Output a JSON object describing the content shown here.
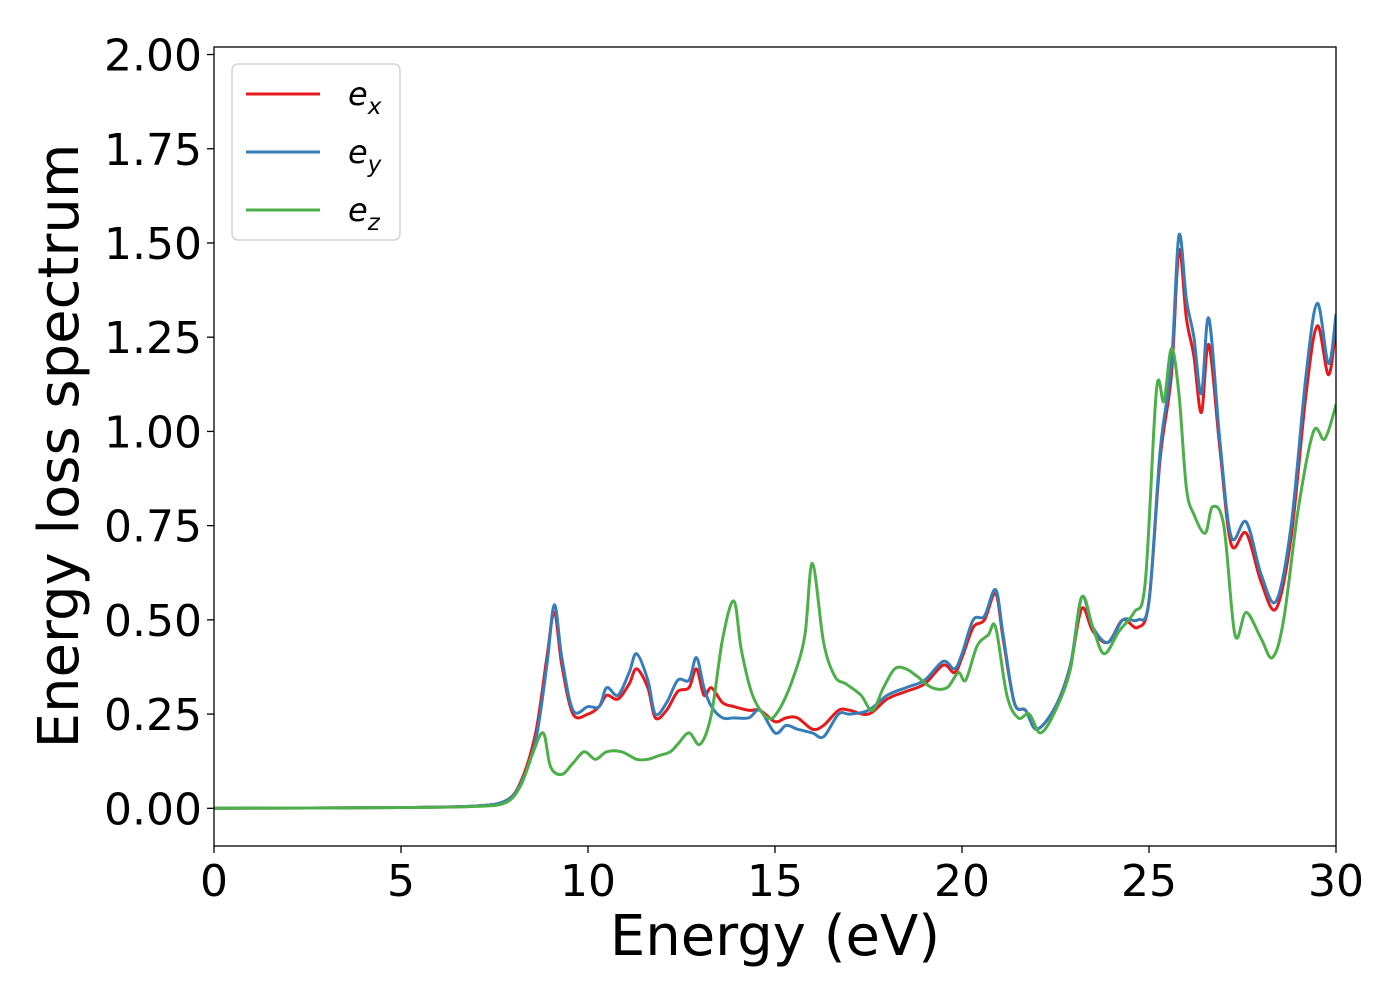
{
  "chart_data": {
    "type": "line",
    "title": "",
    "xlabel": "Energy (eV)",
    "ylabel": "Energy loss spectrum",
    "xlim": [
      0,
      30
    ],
    "ylim": [
      -0.1,
      2.02
    ],
    "xticks": [
      0,
      5,
      10,
      15,
      20,
      25,
      30
    ],
    "xtick_labels": [
      "0",
      "5",
      "10",
      "15",
      "20",
      "25",
      "30"
    ],
    "yticks": [
      0,
      0.25,
      0.5,
      0.75,
      1.0,
      1.25,
      1.5,
      1.75,
      2.0
    ],
    "ytick_labels": [
      "0.00",
      "0.25",
      "0.50",
      "0.75",
      "1.00",
      "1.25",
      "1.50",
      "1.75",
      "2.00"
    ],
    "grid": false,
    "legend_position": "top-left",
    "series": [
      {
        "name": "e_x",
        "label_base": "e",
        "label_sub": "x",
        "color": "#e41a1c",
        "x": [
          0,
          5,
          7,
          7.8,
          8.2,
          8.6,
          8.9,
          9.1,
          9.3,
          9.6,
          10,
          10.3,
          10.5,
          10.8,
          11.1,
          11.3,
          11.6,
          11.8,
          12.1,
          12.4,
          12.7,
          12.9,
          13.1,
          13.3,
          13.6,
          13.9,
          14.3,
          14.6,
          15.0,
          15.3,
          15.6,
          16.0,
          16.3,
          16.7,
          17.0,
          17.5,
          18.0,
          18.5,
          19.0,
          19.5,
          19.8,
          20.0,
          20.3,
          20.6,
          20.9,
          21.1,
          21.4,
          21.7,
          22.0,
          22.5,
          22.9,
          23.2,
          23.5,
          23.9,
          24.3,
          24.7,
          25.0,
          25.3,
          25.6,
          25.8,
          26.0,
          26.2,
          26.4,
          26.6,
          26.9,
          27.2,
          27.6,
          28.0,
          28.4,
          28.8,
          29.2,
          29.5,
          29.8,
          30.0
        ],
        "y": [
          0.0,
          0.002,
          0.006,
          0.02,
          0.07,
          0.2,
          0.4,
          0.52,
          0.38,
          0.25,
          0.25,
          0.27,
          0.3,
          0.29,
          0.33,
          0.37,
          0.32,
          0.24,
          0.26,
          0.31,
          0.32,
          0.37,
          0.3,
          0.32,
          0.28,
          0.27,
          0.26,
          0.26,
          0.23,
          0.24,
          0.24,
          0.21,
          0.22,
          0.26,
          0.26,
          0.25,
          0.29,
          0.31,
          0.33,
          0.38,
          0.36,
          0.4,
          0.48,
          0.5,
          0.57,
          0.45,
          0.28,
          0.26,
          0.21,
          0.27,
          0.38,
          0.53,
          0.47,
          0.44,
          0.5,
          0.48,
          0.55,
          0.93,
          1.15,
          1.48,
          1.3,
          1.2,
          1.05,
          1.23,
          0.95,
          0.7,
          0.73,
          0.6,
          0.53,
          0.72,
          1.1,
          1.28,
          1.15,
          1.28
        ]
      },
      {
        "name": "e_y",
        "label_base": "e",
        "label_sub": "y",
        "color": "#377eb8",
        "x": [
          0,
          5,
          7,
          7.8,
          8.2,
          8.6,
          8.9,
          9.1,
          9.3,
          9.6,
          10,
          10.3,
          10.5,
          10.8,
          11.1,
          11.3,
          11.6,
          11.8,
          12.1,
          12.4,
          12.7,
          12.9,
          13.1,
          13.3,
          13.6,
          13.9,
          14.3,
          14.6,
          15.0,
          15.3,
          15.6,
          16.0,
          16.3,
          16.7,
          17.0,
          17.5,
          18.0,
          18.5,
          19.0,
          19.5,
          19.8,
          20.0,
          20.3,
          20.6,
          20.9,
          21.1,
          21.4,
          21.7,
          22.0,
          22.5,
          22.9,
          23.2,
          23.5,
          23.9,
          24.3,
          24.7,
          25.0,
          25.3,
          25.6,
          25.8,
          26.0,
          26.2,
          26.4,
          26.6,
          26.9,
          27.2,
          27.6,
          28.0,
          28.4,
          28.8,
          29.2,
          29.5,
          29.8,
          30.0
        ],
        "y": [
          0.0,
          0.002,
          0.006,
          0.02,
          0.065,
          0.18,
          0.38,
          0.54,
          0.4,
          0.26,
          0.27,
          0.27,
          0.32,
          0.3,
          0.36,
          0.41,
          0.34,
          0.25,
          0.28,
          0.34,
          0.34,
          0.4,
          0.32,
          0.27,
          0.24,
          0.24,
          0.24,
          0.26,
          0.2,
          0.22,
          0.21,
          0.2,
          0.19,
          0.25,
          0.25,
          0.26,
          0.3,
          0.32,
          0.34,
          0.39,
          0.37,
          0.41,
          0.5,
          0.51,
          0.58,
          0.46,
          0.28,
          0.26,
          0.21,
          0.27,
          0.38,
          0.56,
          0.48,
          0.44,
          0.5,
          0.5,
          0.55,
          0.95,
          1.18,
          1.52,
          1.35,
          1.25,
          1.1,
          1.3,
          0.97,
          0.72,
          0.76,
          0.62,
          0.55,
          0.75,
          1.15,
          1.34,
          1.18,
          1.31
        ]
      },
      {
        "name": "e_z",
        "label_base": "e",
        "label_sub": "z",
        "color": "#4daf4a",
        "x": [
          0,
          5,
          7,
          7.8,
          8.2,
          8.5,
          8.8,
          9.0,
          9.3,
          9.6,
          9.9,
          10.2,
          10.5,
          10.9,
          11.3,
          11.6,
          11.9,
          12.2,
          12.4,
          12.7,
          13.0,
          13.3,
          13.6,
          13.9,
          14.1,
          14.4,
          14.8,
          15.1,
          15.5,
          15.8,
          16.0,
          16.3,
          16.6,
          16.9,
          17.3,
          17.6,
          17.9,
          18.2,
          18.5,
          18.8,
          19.2,
          19.6,
          19.9,
          20.1,
          20.4,
          20.7,
          20.9,
          21.2,
          21.5,
          21.8,
          22.1,
          22.5,
          22.9,
          23.2,
          23.5,
          23.8,
          24.2,
          24.6,
          24.9,
          25.2,
          25.4,
          25.6,
          25.8,
          26.0,
          26.2,
          26.5,
          26.7,
          27.0,
          27.3,
          27.6,
          28.0,
          28.3,
          28.6,
          29.0,
          29.4,
          29.7,
          30.0
        ],
        "y": [
          0.0,
          0.002,
          0.005,
          0.015,
          0.06,
          0.14,
          0.2,
          0.11,
          0.09,
          0.12,
          0.15,
          0.13,
          0.15,
          0.15,
          0.13,
          0.13,
          0.14,
          0.15,
          0.17,
          0.2,
          0.17,
          0.25,
          0.45,
          0.55,
          0.42,
          0.3,
          0.24,
          0.26,
          0.35,
          0.46,
          0.65,
          0.44,
          0.35,
          0.33,
          0.3,
          0.26,
          0.32,
          0.37,
          0.37,
          0.35,
          0.32,
          0.32,
          0.36,
          0.34,
          0.43,
          0.46,
          0.48,
          0.3,
          0.24,
          0.25,
          0.2,
          0.26,
          0.37,
          0.56,
          0.48,
          0.41,
          0.47,
          0.52,
          0.6,
          1.11,
          1.08,
          1.22,
          1.1,
          0.85,
          0.78,
          0.73,
          0.8,
          0.75,
          0.46,
          0.52,
          0.45,
          0.4,
          0.5,
          0.8,
          1.0,
          0.98,
          1.07
        ]
      }
    ]
  }
}
